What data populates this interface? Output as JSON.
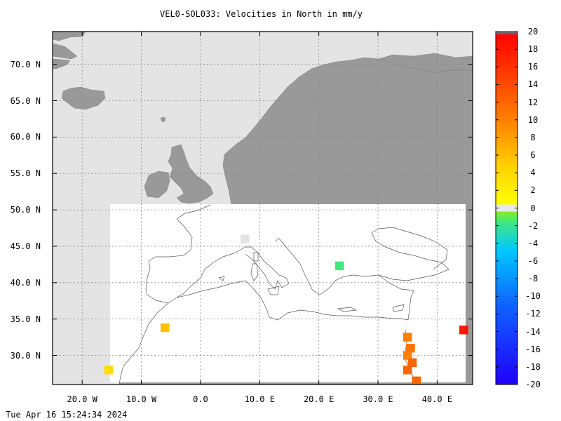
{
  "title": "VEL0-SOL033: Velocities in North in mm/y",
  "footer_timestamp": "Tue Apr 16 15:24:34 2024",
  "map": {
    "lon_range": [
      -25,
      46
    ],
    "lat_range": [
      26,
      74.5
    ],
    "land_color": "#999999",
    "sea_color": "#e4e4e4",
    "data_area_color": "#ffffff",
    "grid": true,
    "lat_ticks": [
      {
        "value": 70,
        "label": "70.0 N"
      },
      {
        "value": 65,
        "label": "65.0 N"
      },
      {
        "value": 60,
        "label": "60.0 N"
      },
      {
        "value": 55,
        "label": "55.0 N"
      },
      {
        "value": 50,
        "label": "50.0 N"
      },
      {
        "value": 45,
        "label": "45.0 N"
      },
      {
        "value": 40,
        "label": "40.0 N"
      },
      {
        "value": 35,
        "label": "35.0 N"
      },
      {
        "value": 30,
        "label": "30.0 N"
      }
    ],
    "lon_ticks": [
      {
        "value": -20,
        "label": "20.0 W"
      },
      {
        "value": -10,
        "label": "10.0 W"
      },
      {
        "value": 0,
        "label": "0.0"
      },
      {
        "value": 10,
        "label": "10.0 E"
      },
      {
        "value": 20,
        "label": "20.0 E"
      },
      {
        "value": 30,
        "label": "30.0 E"
      },
      {
        "value": 40,
        "label": "40.0 E"
      }
    ]
  },
  "chart_data": {
    "type": "heatmap",
    "title": "VEL0-SOL033: Velocities in North in mm/y",
    "xlabel": "",
    "ylabel": "",
    "xlim": [
      -25,
      46
    ],
    "ylim": [
      26,
      74.5
    ],
    "value_range": [
      -20,
      20
    ],
    "colorbar_ticks": [
      20,
      18,
      16,
      14,
      12,
      10,
      8,
      6,
      4,
      2,
      0,
      -2,
      -4,
      -6,
      -8,
      -10,
      -12,
      -14,
      -16,
      -18,
      -20
    ],
    "cells": [
      {
        "lon": 7.5,
        "lat": 46.0,
        "value": 0
      },
      {
        "lon": 23.5,
        "lat": 42.3,
        "value": -3
      },
      {
        "lon": -6.0,
        "lat": 33.8,
        "value": 6
      },
      {
        "lon": -15.5,
        "lat": 28.0,
        "value": 4
      },
      {
        "lon": 35.0,
        "lat": 32.5,
        "value": 10
      },
      {
        "lon": 35.5,
        "lat": 31.0,
        "value": 11
      },
      {
        "lon": 35.0,
        "lat": 30.0,
        "value": 10
      },
      {
        "lon": 35.8,
        "lat": 29.0,
        "value": 12
      },
      {
        "lon": 35.0,
        "lat": 28.0,
        "value": 12
      },
      {
        "lon": 36.5,
        "lat": 26.5,
        "value": 12
      },
      {
        "lon": 44.5,
        "lat": 33.5,
        "value": 18
      }
    ]
  }
}
